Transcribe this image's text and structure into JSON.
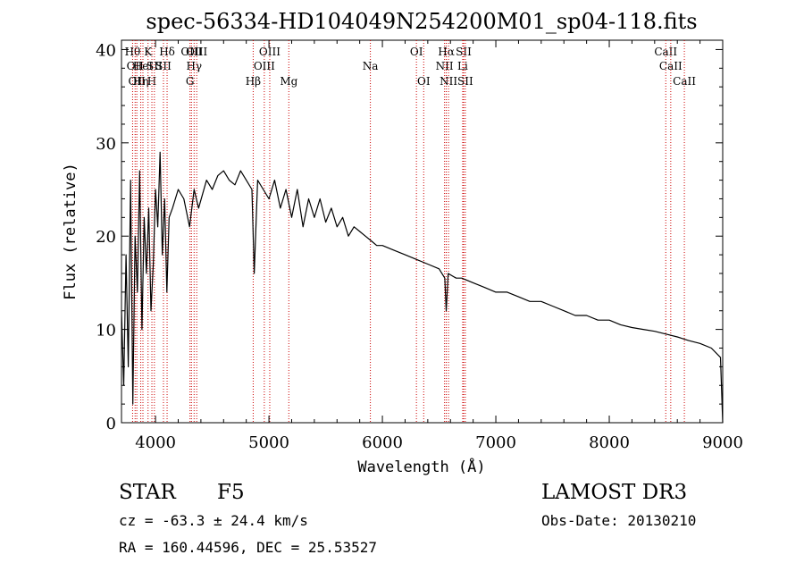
{
  "chart_data": {
    "type": "line",
    "title": "spec-56334-HD104049N254200M01_sp04-118.fits",
    "xlabel": "Wavelength (Å)",
    "ylabel": "Flux (relative)",
    "xlim": [
      3700,
      9000
    ],
    "ylim": [
      0,
      41
    ],
    "xticks": [
      4000,
      5000,
      6000,
      7000,
      8000,
      9000
    ],
    "yticks": [
      0,
      10,
      20,
      30,
      40
    ],
    "grid": false,
    "series": [
      {
        "name": "spectrum",
        "x": [
          3700,
          3720,
          3740,
          3760,
          3780,
          3800,
          3820,
          3840,
          3860,
          3880,
          3900,
          3920,
          3940,
          3960,
          3980,
          4000,
          4020,
          4040,
          4060,
          4080,
          4100,
          4120,
          4150,
          4200,
          4250,
          4300,
          4340,
          4380,
          4450,
          4500,
          4550,
          4600,
          4650,
          4700,
          4750,
          4800,
          4850,
          4870,
          4900,
          4950,
          5000,
          5050,
          5100,
          5150,
          5200,
          5250,
          5300,
          5350,
          5400,
          5450,
          5500,
          5550,
          5600,
          5650,
          5700,
          5750,
          5800,
          5850,
          5900,
          5950,
          6000,
          6100,
          6200,
          6300,
          6400,
          6500,
          6550,
          6563,
          6580,
          6650,
          6700,
          6800,
          6900,
          7000,
          7100,
          7200,
          7300,
          7400,
          7500,
          7600,
          7700,
          7800,
          7900,
          8000,
          8100,
          8200,
          8300,
          8400,
          8500,
          8600,
          8700,
          8800,
          8900,
          8980,
          9000
        ],
        "y": [
          12,
          4,
          18,
          6,
          26,
          2,
          20,
          14,
          27,
          10,
          22,
          16,
          23,
          12,
          17,
          25,
          21,
          29,
          18,
          24,
          14,
          22,
          23,
          25,
          24,
          21,
          25,
          23,
          26,
          25,
          26.5,
          27,
          26,
          25.5,
          27,
          26,
          25,
          16,
          26,
          25,
          24,
          26,
          23,
          25,
          22,
          25,
          21,
          24,
          22,
          24,
          21.5,
          23,
          21,
          22,
          20,
          21,
          20.5,
          20,
          19.5,
          19,
          19,
          18.5,
          18,
          17.5,
          17,
          16.5,
          15.5,
          12,
          16,
          15.5,
          15.5,
          15,
          14.5,
          14,
          14,
          13.5,
          13,
          13,
          12.5,
          12,
          11.5,
          11.5,
          11,
          11,
          10.5,
          10.2,
          10,
          9.8,
          9.5,
          9.2,
          8.8,
          8.5,
          8,
          7,
          0
        ]
      }
    ],
    "line_markers": [
      {
        "wavelength": 3798,
        "row": 1,
        "label": "Hθ"
      },
      {
        "wavelength": 3820,
        "row": 2,
        "label": "OII"
      },
      {
        "wavelength": 3835,
        "row": 3,
        "label": "OII"
      },
      {
        "wavelength": 3870,
        "row": 3,
        "label": "Hη"
      },
      {
        "wavelength": 3889,
        "row": 2,
        "label": "HeI"
      },
      {
        "wavelength": 3934,
        "row": 1,
        "label": "K"
      },
      {
        "wavelength": 3968,
        "row": 3,
        "label": "H"
      },
      {
        "wavelength": 3990,
        "row": 2,
        "label": "SII"
      },
      {
        "wavelength": 4070,
        "row": 2,
        "label": "SII"
      },
      {
        "wavelength": 4102,
        "row": 1,
        "label": "Hδ"
      },
      {
        "wavelength": 4304,
        "row": 3,
        "label": "G"
      },
      {
        "wavelength": 4317,
        "row": 1,
        "label": "OIII"
      },
      {
        "wavelength": 4340,
        "row": 2,
        "label": "Hγ"
      },
      {
        "wavelength": 4363,
        "row": 1,
        "label": "OIII"
      },
      {
        "wavelength": 4861,
        "row": 3,
        "label": "Hβ"
      },
      {
        "wavelength": 4959,
        "row": 2,
        "label": "OIII"
      },
      {
        "wavelength": 5007,
        "row": 1,
        "label": "OIII"
      },
      {
        "wavelength": 5175,
        "row": 3,
        "label": "Mg"
      },
      {
        "wavelength": 5894,
        "row": 2,
        "label": "Na"
      },
      {
        "wavelength": 6300,
        "row": 1,
        "label": "OI"
      },
      {
        "wavelength": 6364,
        "row": 3,
        "label": "OI"
      },
      {
        "wavelength": 6548,
        "row": 2,
        "label": "NII"
      },
      {
        "wavelength": 6563,
        "row": 1,
        "label": "Hα"
      },
      {
        "wavelength": 6583,
        "row": 3,
        "label": "NII"
      },
      {
        "wavelength": 6708,
        "row": 2,
        "label": "Li"
      },
      {
        "wavelength": 6716,
        "row": 1,
        "label": "SII"
      },
      {
        "wavelength": 6731,
        "row": 3,
        "label": "SII"
      },
      {
        "wavelength": 8498,
        "row": 1,
        "label": "CaII"
      },
      {
        "wavelength": 8542,
        "row": 2,
        "label": "CaII"
      },
      {
        "wavelength": 8662,
        "row": 3,
        "label": "CaII"
      }
    ],
    "colors": {
      "line": "#000000",
      "marker": "#cc0000",
      "axis": "#000000"
    }
  },
  "info": {
    "object_type": "STAR",
    "subclass": "F5",
    "survey": "LAMOST DR3",
    "redshift": "cz = -63.3 ± 24.4 km/s",
    "obs_date": "Obs-Date: 20130210",
    "coords": "RA = 160.44596, DEC =  25.53527"
  }
}
